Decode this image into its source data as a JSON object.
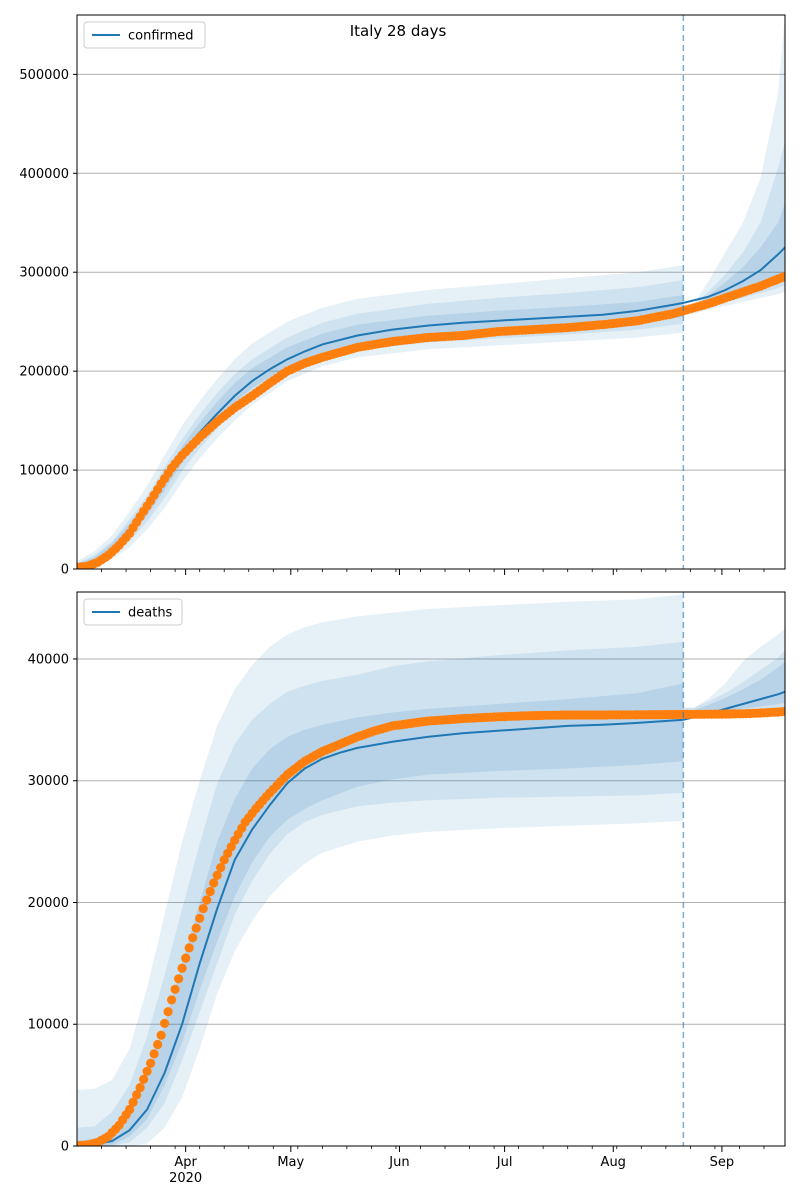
{
  "figure_title": "Italy 28 days",
  "colors": {
    "model": "#1f77b4",
    "observed": "#ff7f0e",
    "band": "#1f77b4",
    "grid": "#b0b0b0",
    "axis": "#000000"
  },
  "x_axis": {
    "month_ticks": [
      {
        "label": "Apr",
        "day": 31,
        "sublabel": "2020"
      },
      {
        "label": "May",
        "day": 61
      },
      {
        "label": "Jun",
        "day": 92
      },
      {
        "label": "Jul",
        "day": 122
      },
      {
        "label": "Aug",
        "day": 153
      },
      {
        "label": "Sep",
        "day": 184
      }
    ],
    "x_range_days": [
      0,
      202
    ],
    "forecast_start_day": 173,
    "x_origin": "2020-03-01 (day 0)"
  },
  "chart_data": [
    {
      "type": "line",
      "name": "confirmed",
      "legend": "confirmed",
      "legend_location": "upper-left",
      "title": "Italy 28 days",
      "xlabel": "",
      "ylabel": "",
      "ylim": [
        0,
        560000
      ],
      "yticks": [
        0,
        100000,
        200000,
        300000,
        400000,
        500000
      ],
      "grid": "y",
      "forecast_start_day": 173,
      "model_curve": {
        "x": [
          0,
          5,
          10,
          15,
          20,
          25,
          30,
          35,
          40,
          45,
          50,
          55,
          60,
          65,
          70,
          80,
          90,
          100,
          110,
          120,
          130,
          140,
          150,
          160,
          170,
          173,
          180,
          185,
          190,
          195,
          200,
          202
        ],
        "y": [
          3000,
          8000,
          20000,
          38000,
          60000,
          88000,
          115000,
          138000,
          157000,
          175000,
          190000,
          202000,
          212000,
          220000,
          227000,
          236000,
          242000,
          246000,
          249000,
          251000,
          253000,
          255000,
          257000,
          261000,
          267000,
          269000,
          275000,
          282000,
          291000,
          302000,
          318000,
          325000
        ]
      },
      "bands": [
        {
          "level": "outer",
          "x": [
            0,
            5,
            10,
            15,
            20,
            25,
            30,
            35,
            40,
            45,
            50,
            60,
            70,
            80,
            100,
            120,
            140,
            160,
            173,
            176,
            180,
            185,
            190,
            195,
            200,
            202
          ],
          "lower": [
            0,
            2000,
            10000,
            22000,
            40000,
            62000,
            88000,
            112000,
            132000,
            150000,
            166000,
            190000,
            205000,
            214000,
            222000,
            226000,
            230000,
            234000,
            239000,
            258000,
            262000,
            266000,
            270000,
            274000,
            278000,
            280000
          ],
          "upper": [
            8000,
            18000,
            34000,
            58000,
            84000,
            115000,
            145000,
            170000,
            192000,
            212000,
            228000,
            250000,
            264000,
            273000,
            282000,
            288000,
            294000,
            300000,
            307000,
            268000,
            290000,
            320000,
            350000,
            395000,
            480000,
            560000
          ]
        },
        {
          "level": "middle",
          "x": [
            0,
            5,
            10,
            15,
            20,
            25,
            30,
            35,
            40,
            45,
            50,
            60,
            70,
            80,
            100,
            120,
            140,
            160,
            173,
            176,
            180,
            185,
            190,
            195,
            200,
            202
          ],
          "lower": [
            1000,
            4000,
            14000,
            28000,
            48000,
            72000,
            99000,
            122000,
            142000,
            160000,
            175000,
            198000,
            211000,
            221000,
            229000,
            233000,
            237000,
            242000,
            248000,
            261000,
            265000,
            270000,
            274000,
            279000,
            284000,
            287000
          ],
          "upper": [
            6000,
            14000,
            28000,
            50000,
            74000,
            103000,
            131000,
            156000,
            178000,
            197000,
            212000,
            234000,
            249000,
            258000,
            268000,
            274000,
            279000,
            285000,
            292000,
            266000,
            280000,
            298000,
            320000,
            350000,
            405000,
            432000
          ],
          "inner_upper": [
            5000,
            12000,
            26000,
            46000,
            69000,
            96000,
            124000,
            148000,
            169000,
            188000,
            203000,
            224000,
            238000,
            247000,
            256000,
            261000,
            265000,
            270000,
            277000,
            264000,
            276000,
            290000,
            305000,
            325000,
            350000,
            370000
          ]
        },
        {
          "level": "inner",
          "x": [
            0,
            5,
            10,
            15,
            20,
            25,
            30,
            35,
            40,
            45,
            50,
            60,
            70,
            80,
            100,
            120,
            140,
            160,
            173,
            176,
            180,
            185,
            190,
            195,
            200,
            202
          ],
          "lower": [
            2000,
            6000,
            17000,
            33000,
            54000,
            80000,
            107000,
            130000,
            150000,
            168000,
            183000,
            205000,
            218000,
            228000,
            236000,
            240000,
            243000,
            248000,
            255000,
            263000,
            269000,
            275000,
            281000,
            288000,
            295000,
            299000
          ],
          "upper": [
            5000,
            12000,
            26000,
            46000,
            69000,
            96000,
            124000,
            148000,
            169000,
            188000,
            203000,
            224000,
            238000,
            247000,
            256000,
            261000,
            265000,
            270000,
            277000,
            264000,
            276000,
            290000,
            305000,
            325000,
            350000,
            370000
          ]
        }
      ],
      "observed": {
        "name": "observed",
        "x": [
          0,
          3,
          6,
          9,
          12,
          15,
          18,
          21,
          24,
          27,
          30,
          35,
          40,
          45,
          50,
          55,
          60,
          65,
          70,
          75,
          80,
          90,
          100,
          110,
          120,
          130,
          140,
          150,
          160,
          170,
          175,
          180,
          185,
          190,
          195,
          200,
          202
        ],
        "y": [
          1700,
          2800,
          7000,
          14000,
          24000,
          36000,
          53000,
          69000,
          86000,
          102000,
          115000,
          133000,
          149000,
          163000,
          175000,
          188000,
          200000,
          208000,
          214000,
          219000,
          224000,
          230000,
          234000,
          236000,
          240000,
          242000,
          244000,
          247000,
          251000,
          258000,
          263000,
          268000,
          274000,
          280000,
          286000,
          293000,
          296000
        ]
      }
    },
    {
      "type": "line",
      "name": "deaths",
      "legend": "deaths",
      "legend_location": "upper-left",
      "xlabel": "",
      "ylabel": "",
      "ylim": [
        0,
        45500
      ],
      "yticks": [
        0,
        10000,
        20000,
        30000,
        40000
      ],
      "grid": "y",
      "forecast_start_day": 173,
      "model_curve": {
        "x": [
          0,
          5,
          10,
          15,
          20,
          25,
          30,
          35,
          40,
          45,
          50,
          55,
          60,
          65,
          70,
          75,
          80,
          90,
          100,
          110,
          120,
          130,
          140,
          150,
          160,
          170,
          173,
          180,
          185,
          190,
          195,
          200,
          202
        ],
        "y": [
          100,
          150,
          400,
          1300,
          3000,
          6000,
          10000,
          15000,
          19500,
          23500,
          26000,
          28000,
          29800,
          31000,
          31800,
          32300,
          32700,
          33200,
          33600,
          33900,
          34100,
          34300,
          34500,
          34600,
          34750,
          34950,
          35000,
          35500,
          35900,
          36300,
          36700,
          37100,
          37300
        ]
      },
      "bands": [
        {
          "level": "outer",
          "x": [
            0,
            5,
            10,
            15,
            20,
            25,
            30,
            35,
            40,
            45,
            50,
            55,
            60,
            65,
            70,
            80,
            90,
            100,
            120,
            140,
            160,
            173,
            176,
            180,
            185,
            190,
            195,
            200,
            202
          ],
          "lower": [
            0,
            0,
            0,
            0,
            200,
            1500,
            4000,
            8000,
            12500,
            16000,
            18500,
            20500,
            22000,
            23200,
            24100,
            25000,
            25500,
            25800,
            26100,
            26300,
            26500,
            26700,
            35200,
            35300,
            35400,
            35500,
            35600,
            35700,
            35800
          ],
          "upper": [
            4600,
            4700,
            5400,
            8000,
            13000,
            19000,
            25000,
            30000,
            34500,
            37500,
            39500,
            41000,
            42000,
            42600,
            43000,
            43500,
            43800,
            44100,
            44400,
            44700,
            44900,
            45300,
            36000,
            36700,
            38000,
            39800,
            41000,
            42000,
            42500
          ]
        },
        {
          "level": "middle",
          "x": [
            0,
            5,
            10,
            15,
            20,
            25,
            30,
            35,
            40,
            45,
            50,
            55,
            60,
            65,
            70,
            80,
            90,
            100,
            120,
            140,
            160,
            173,
            176,
            180,
            185,
            190,
            195,
            200,
            202
          ],
          "lower": [
            0,
            0,
            0,
            300,
            1500,
            3500,
            7000,
            11000,
            15000,
            19000,
            21800,
            24000,
            25600,
            26600,
            27200,
            27900,
            28200,
            28400,
            28600,
            28700,
            28800,
            29000,
            35300,
            35400,
            35500,
            35600,
            35700,
            35800,
            35900
          ],
          "upper": [
            1500,
            1600,
            2800,
            5000,
            9000,
            14000,
            19500,
            24800,
            29800,
            33000,
            35000,
            36300,
            37300,
            37800,
            38200,
            38700,
            39400,
            39800,
            40300,
            40700,
            41000,
            41400,
            36000,
            36500,
            37200,
            38100,
            39100,
            40100,
            40700
          ]
        },
        {
          "level": "inner",
          "x": [
            0,
            5,
            10,
            15,
            20,
            25,
            30,
            35,
            40,
            45,
            50,
            55,
            60,
            65,
            70,
            80,
            90,
            100,
            120,
            140,
            160,
            173,
            176,
            180,
            185,
            190,
            195,
            200,
            202
          ],
          "lower": [
            0,
            0,
            100,
            800,
            2200,
            5000,
            8500,
            12800,
            16800,
            20500,
            23300,
            25400,
            26800,
            27700,
            28400,
            29500,
            30100,
            30500,
            30800,
            31000,
            31300,
            31600,
            35400,
            35500,
            35700,
            35900,
            36100,
            36300,
            36400
          ],
          "upper": [
            400,
            600,
            1300,
            3000,
            6000,
            10000,
            15000,
            20000,
            25000,
            28500,
            31000,
            32600,
            33600,
            34200,
            34600,
            35200,
            35600,
            35900,
            36300,
            36700,
            37200,
            38000,
            35800,
            36200,
            36800,
            37500,
            38300,
            39300,
            39800
          ]
        }
      ],
      "observed": {
        "name": "observed",
        "x": [
          0,
          3,
          6,
          9,
          12,
          15,
          18,
          21,
          24,
          27,
          30,
          33,
          36,
          39,
          42,
          45,
          48,
          51,
          54,
          57,
          60,
          65,
          70,
          75,
          80,
          85,
          90,
          100,
          110,
          120,
          130,
          140,
          150,
          160,
          170,
          175,
          180,
          185,
          190,
          195,
          200,
          202
        ],
        "y": [
          30,
          80,
          300,
          800,
          1700,
          3000,
          4800,
          6800,
          9100,
          12000,
          14600,
          17100,
          19500,
          21600,
          23500,
          25100,
          26600,
          27700,
          28700,
          29600,
          30500,
          31600,
          32400,
          33000,
          33600,
          34100,
          34500,
          34900,
          35100,
          35250,
          35350,
          35400,
          35400,
          35420,
          35440,
          35450,
          35460,
          35480,
          35500,
          35560,
          35640,
          35700
        ]
      }
    }
  ]
}
